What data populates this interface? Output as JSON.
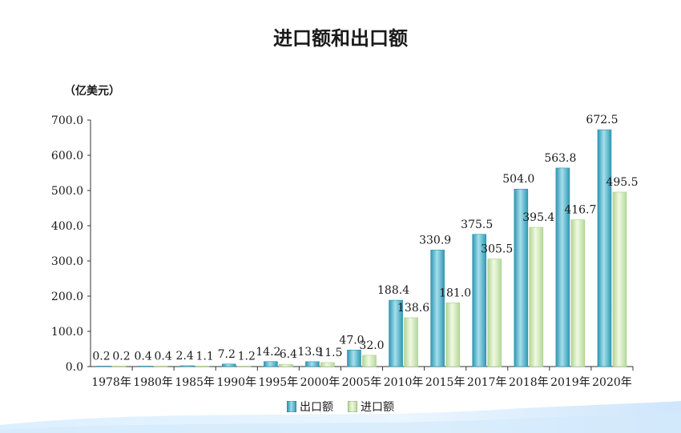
{
  "title": "进口额和出口额",
  "unit_label": "（亿美元）",
  "colors": {
    "export": "#45aec7",
    "import": "#cfe8b4"
  },
  "chart_data": {
    "type": "bar",
    "title": "进口额和出口额",
    "ylabel": "（亿美元）",
    "ylim": [
      0,
      700
    ],
    "y_ticks": [
      "0.0",
      "100.0",
      "200.0",
      "300.0",
      "400.0",
      "500.0",
      "600.0",
      "700.0"
    ],
    "categories": [
      "1978年",
      "1980年",
      "1985年",
      "1990年",
      "1995年",
      "2000年",
      "2005年",
      "2010年",
      "2015年",
      "2017年",
      "2018年",
      "2019年",
      "2020年"
    ],
    "series": [
      {
        "name": "出口额",
        "values": [
          0.2,
          0.4,
          2.4,
          7.2,
          14.2,
          13.9,
          47.0,
          188.4,
          330.9,
          375.5,
          504.0,
          563.8,
          672.5
        ],
        "labels": [
          "0.2",
          "0.4",
          "2.4",
          "7.2",
          "14.2",
          "13.9",
          "47.0",
          "188.4",
          "330.9",
          "375.5",
          "504.0",
          "563.8",
          "672.5"
        ]
      },
      {
        "name": "进口额",
        "values": [
          0.2,
          0.4,
          1.1,
          1.2,
          6.4,
          11.5,
          32.0,
          138.6,
          181.0,
          305.5,
          395.4,
          416.7,
          495.5
        ],
        "labels": [
          "0.2",
          "0.4",
          "1.1",
          "1.2",
          "6.4",
          "11.5",
          "32.0",
          "138.6",
          "181.0",
          "305.5",
          "395.4",
          "416.7",
          "495.5"
        ]
      }
    ],
    "legend": "bottom-center",
    "grid": false
  }
}
